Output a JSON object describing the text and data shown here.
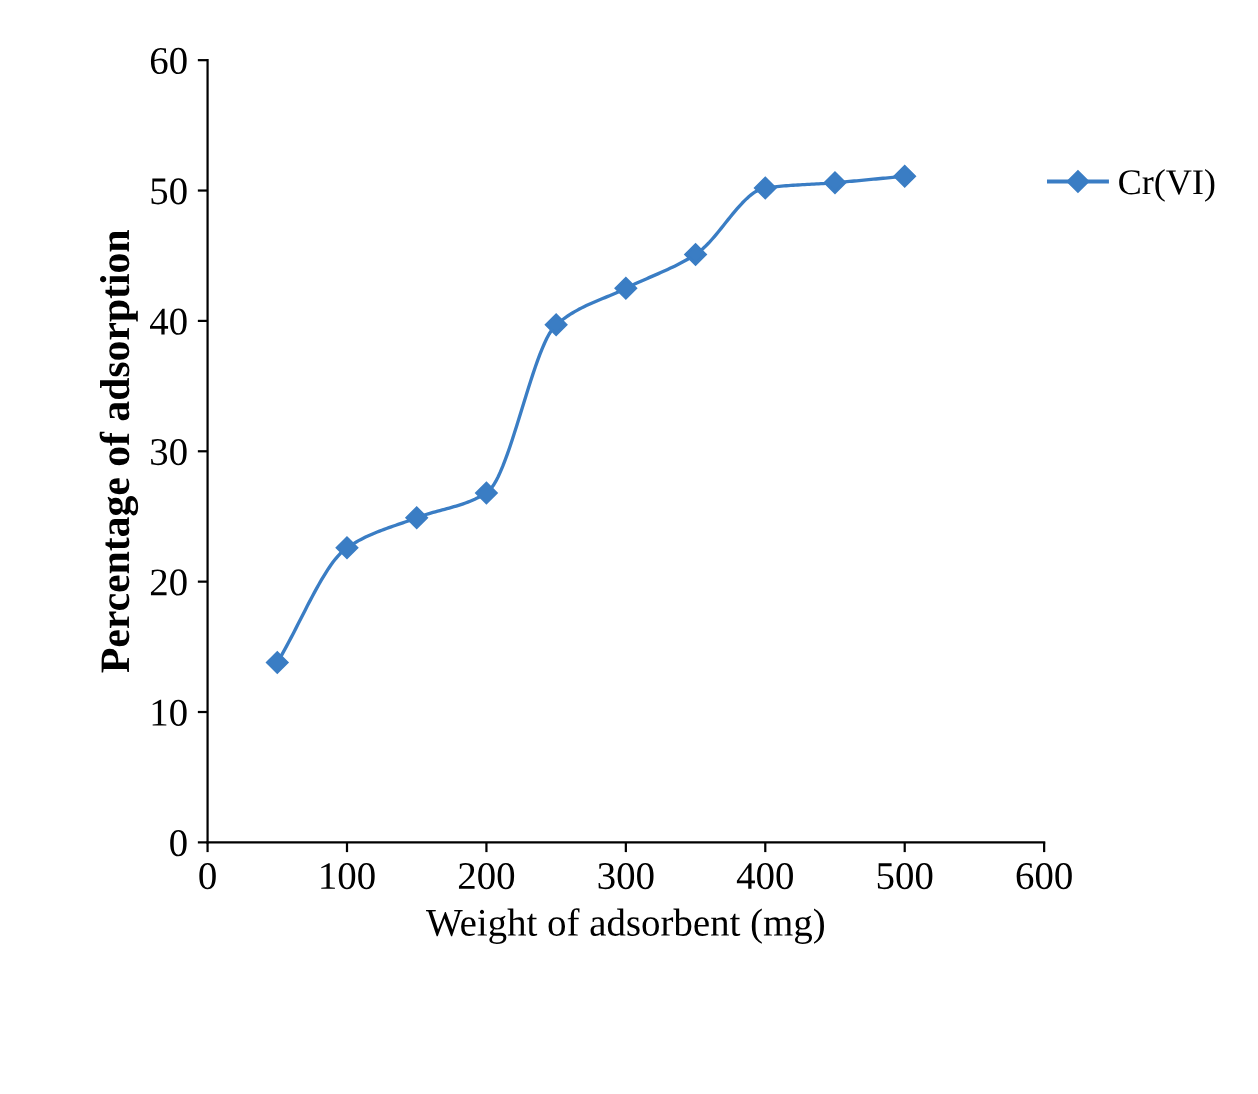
{
  "chart_data": {
    "type": "line",
    "xlabel": "Weight of adsorbent (mg)",
    "ylabel": "Percentage of adsorption",
    "x": [
      50,
      100,
      150,
      200,
      250,
      300,
      350,
      400,
      450,
      500
    ],
    "series": [
      {
        "name": "Cr(VI)",
        "color": "#3a7dc4",
        "values": [
          13.8,
          22.6,
          24.9,
          26.8,
          39.7,
          42.5,
          45.1,
          50.2,
          50.6,
          51.1
        ]
      }
    ],
    "xlim": [
      0,
      600
    ],
    "xticks": [
      0,
      100,
      200,
      300,
      400,
      500,
      600
    ],
    "ylim": [
      0,
      60
    ],
    "yticks": [
      0,
      10,
      20,
      30,
      40,
      50,
      60
    ],
    "grid": false,
    "legend": "right",
    "marker": "diamond",
    "line_style": "solid"
  }
}
